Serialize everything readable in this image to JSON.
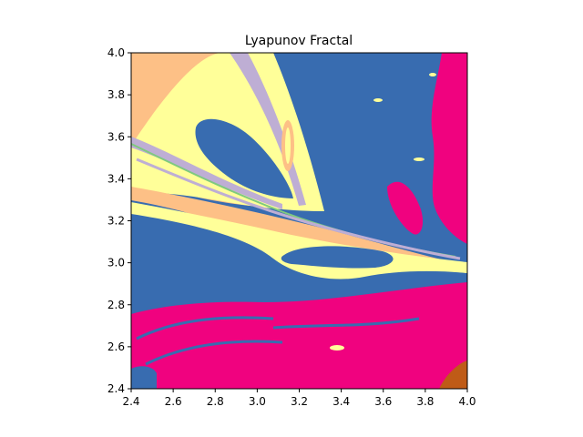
{
  "chart_data": {
    "type": "heatmap",
    "title": "Lyapunov Fractal",
    "xlabel": "",
    "ylabel": "",
    "xlim": [
      2.4,
      4.0
    ],
    "ylim": [
      2.4,
      4.0
    ],
    "x_ticks": [
      "2.4",
      "2.6",
      "2.8",
      "3.0",
      "3.2",
      "3.4",
      "3.6",
      "3.8",
      "4.0"
    ],
    "y_ticks": [
      "2.4",
      "2.6",
      "2.8",
      "3.0",
      "3.2",
      "3.4",
      "3.6",
      "3.8",
      "4.0"
    ],
    "grid": false,
    "colormap": "Accent (discrete)",
    "palette": [
      "#386cb0",
      "#ffff99",
      "#fdc086",
      "#beaed4",
      "#7fc97f",
      "#f0027f",
      "#bf5b17"
    ]
  }
}
